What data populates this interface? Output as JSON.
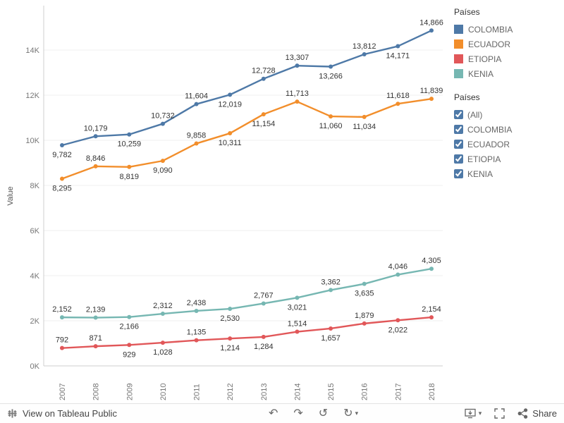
{
  "chart_data": {
    "type": "line",
    "title": "",
    "ylabel": "Value",
    "xlabel": "",
    "x": [
      2007,
      2008,
      2009,
      2010,
      2011,
      2012,
      2013,
      2014,
      2015,
      2016,
      2017,
      2018
    ],
    "ylim": [
      0,
      15500
    ],
    "yticks": [
      "0K",
      "2K",
      "4K",
      "6K",
      "8K",
      "10K",
      "12K",
      "14K"
    ],
    "grid": true,
    "legend_position": "top-right",
    "series": [
      {
        "name": "COLOMBIA",
        "color": "#4e79a7",
        "values": [
          9782,
          10179,
          10259,
          10732,
          11604,
          12019,
          12728,
          13307,
          13266,
          13812,
          14171,
          14866
        ],
        "labels": [
          "9,782",
          "10,179",
          "10,259",
          "10,732",
          "11,604",
          "12,019",
          "12,728",
          "13,307",
          "13,266",
          "13,812",
          "14,171",
          "14,866"
        ],
        "label_pos": [
          "below",
          "above",
          "below",
          "above",
          "above",
          "below",
          "above",
          "above",
          "below",
          "above",
          "below",
          "above"
        ]
      },
      {
        "name": "ECUADOR",
        "color": "#f28e2b",
        "values": [
          8295,
          8846,
          8819,
          9090,
          9858,
          10311,
          11154,
          11713,
          11060,
          11034,
          11618,
          11839
        ],
        "labels": [
          "8,295",
          "8,846",
          "8,819",
          "9,090",
          "9,858",
          "10,311",
          "11,154",
          "11,713",
          "11,060",
          "11,034",
          "11,618",
          "11,839"
        ],
        "label_pos": [
          "below",
          "above",
          "below",
          "below",
          "above",
          "below",
          "below",
          "above",
          "below",
          "below",
          "above",
          "above"
        ]
      },
      {
        "name": "ETIOPIA",
        "color": "#e15759",
        "values": [
          792,
          871,
          929,
          1028,
          1135,
          1214,
          1284,
          1514,
          1657,
          1879,
          2022,
          2154
        ],
        "labels": [
          "792",
          "871",
          "929",
          "1,028",
          "1,135",
          "1,214",
          "1,284",
          "1,514",
          "1,657",
          "1,879",
          "2,022",
          "2,154"
        ],
        "label_pos": [
          "above",
          "above",
          "below",
          "below",
          "above",
          "below",
          "below",
          "above",
          "below",
          "above",
          "below",
          "above"
        ]
      },
      {
        "name": "KENIA",
        "color": "#76b7b2",
        "values": [
          2152,
          2139,
          2166,
          2312,
          2438,
          2530,
          2767,
          3021,
          3362,
          3635,
          4046,
          4305
        ],
        "labels": [
          "2,152",
          "2,139",
          "2,166",
          "2,312",
          "2,438",
          "2,530",
          "2,767",
          "3,021",
          "3,362",
          "3,635",
          "4,046",
          "4,305"
        ],
        "label_pos": [
          "above",
          "above",
          "below",
          "above",
          "above",
          "below",
          "above",
          "below",
          "above",
          "below",
          "above",
          "above"
        ]
      }
    ]
  },
  "legend": {
    "title": "Países",
    "items": [
      {
        "label": "COLOMBIA",
        "color": "#4e79a7"
      },
      {
        "label": "ECUADOR",
        "color": "#f28e2b"
      },
      {
        "label": "ETIOPIA",
        "color": "#e15759"
      },
      {
        "label": "KENIA",
        "color": "#76b7b2"
      }
    ]
  },
  "filter": {
    "title": "Países",
    "options": [
      {
        "label": "(All)",
        "checked": true
      },
      {
        "label": "COLOMBIA",
        "checked": true
      },
      {
        "label": "ECUADOR",
        "checked": true
      },
      {
        "label": "ETIOPIA",
        "checked": true
      },
      {
        "label": "KENIA",
        "checked": true
      }
    ]
  },
  "toolbar": {
    "view_label": "View on Tableau Public",
    "share_label": "Share",
    "undo_glyph": "↶",
    "redo_glyph": "↷",
    "reset_glyph": "↺",
    "refresh_glyph": "↻",
    "caret_glyph": "▾"
  }
}
